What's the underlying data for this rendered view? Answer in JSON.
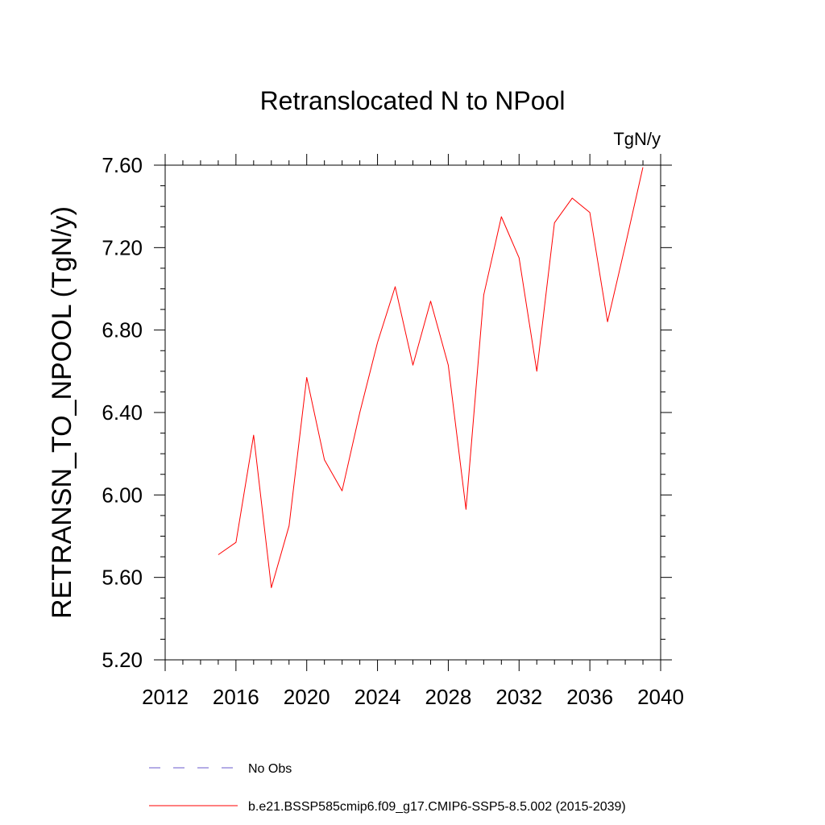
{
  "chart_data": {
    "type": "line",
    "title": "Retranslocated N to NPool",
    "units": "TgN/y",
    "ylabel": "RETRANSN_TO_NPOOL  (TgN/y)",
    "xlabel": "",
    "xlim": [
      2012,
      2040
    ],
    "ylim": [
      5.2,
      7.6
    ],
    "x_ticks": [
      2012,
      2016,
      2020,
      2024,
      2028,
      2032,
      2036,
      2040
    ],
    "x_tick_labels": [
      "2012",
      "2016",
      "2020",
      "2024",
      "2028",
      "2032",
      "2036",
      "2040"
    ],
    "y_ticks": [
      5.2,
      5.6,
      6.0,
      6.4,
      6.8,
      7.2,
      7.6
    ],
    "y_tick_labels": [
      "5.20",
      "5.60",
      "6.00",
      "6.40",
      "6.80",
      "7.20",
      "7.60"
    ],
    "grid": false,
    "legend_position": "bottom",
    "series": [
      {
        "name": "b.e21.BSSP585cmip6.f09_g17.CMIP6-SSP5-8.5.002 (2015-2039)",
        "color": "#ff0000",
        "line_style": "solid",
        "x": [
          2015,
          2016,
          2017,
          2018,
          2019,
          2020,
          2021,
          2022,
          2023,
          2024,
          2025,
          2026,
          2027,
          2028,
          2029,
          2030,
          2031,
          2032,
          2033,
          2034,
          2035,
          2036,
          2037,
          2038,
          2039
        ],
        "values": [
          5.71,
          5.77,
          6.29,
          5.55,
          5.85,
          6.57,
          6.17,
          6.02,
          6.4,
          6.74,
          7.01,
          6.63,
          6.94,
          6.63,
          5.93,
          6.97,
          7.35,
          7.15,
          6.6,
          7.32,
          7.44,
          7.37,
          6.84,
          7.21,
          7.59
        ]
      }
    ],
    "legend": [
      {
        "label": "No Obs",
        "color": "#6a5acd",
        "line_style": "dashed"
      },
      {
        "label": "b.e21.BSSP585cmip6.f09_g17.CMIP6-SSP5-8.5.002 (2015-2039)",
        "color": "#ff0000",
        "line_style": "solid"
      }
    ]
  }
}
